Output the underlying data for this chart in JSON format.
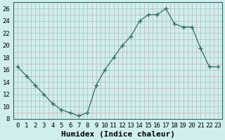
{
  "x": [
    0,
    1,
    2,
    3,
    4,
    5,
    6,
    7,
    8,
    9,
    10,
    11,
    12,
    13,
    14,
    15,
    16,
    17,
    18,
    19,
    20,
    21,
    22,
    23
  ],
  "y": [
    16.5,
    15.0,
    13.5,
    12.0,
    10.5,
    9.5,
    9.0,
    8.5,
    9.0,
    13.5,
    16.0,
    18.0,
    20.0,
    21.5,
    24.0,
    25.0,
    25.0,
    26.0,
    23.5,
    23.0,
    23.0,
    19.5,
    16.5,
    16.5
  ],
  "line_color": "#2e6e60",
  "marker": "+",
  "marker_size": 4,
  "background_color": "#d0eeee",
  "grid_minor_color": "#c8b0b0",
  "grid_major_color": "#b0cccc",
  "xlabel": "Humidex (Indice chaleur)",
  "xlabel_fontsize": 8,
  "xlim": [
    -0.5,
    23.5
  ],
  "ylim": [
    8,
    27
  ],
  "yticks": [
    8,
    10,
    12,
    14,
    16,
    18,
    20,
    22,
    24,
    26
  ],
  "xtick_labels": [
    "0",
    "1",
    "2",
    "3",
    "4",
    "5",
    "6",
    "7",
    "8",
    "9",
    "10",
    "11",
    "12",
    "13",
    "14",
    "15",
    "16",
    "17",
    "18",
    "19",
    "20",
    "21",
    "22",
    "23"
  ],
  "tick_fontsize": 6.5
}
